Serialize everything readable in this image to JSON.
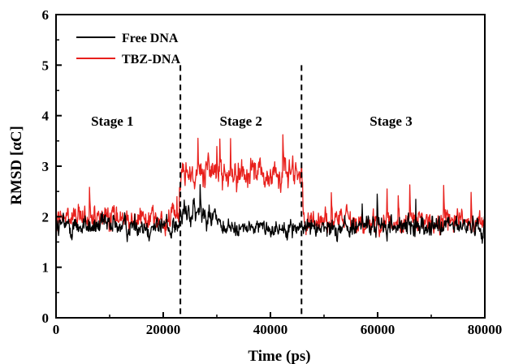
{
  "chart_data": {
    "type": "line",
    "title": "",
    "xlabel": "Time (ps)",
    "ylabel": "RMSD [αC]",
    "xlim": [
      0,
      80000
    ],
    "ylim": [
      0,
      6
    ],
    "x_ticks": [
      0,
      20000,
      40000,
      60000,
      80000
    ],
    "y_ticks": [
      0,
      1,
      2,
      3,
      4,
      5,
      6
    ],
    "x_tick_labels": [
      "0",
      "20000",
      "40000",
      "60000",
      "80000"
    ],
    "y_tick_labels": [
      "0",
      "1",
      "2",
      "3",
      "4",
      "5",
      "6"
    ],
    "grid": false,
    "legend_position": "top-left",
    "series": [
      {
        "name": "Free DNA",
        "color": "#000000",
        "sample_interval_ps": 80,
        "segments": [
          {
            "x_start": 0,
            "x_end": 23000,
            "mean": 1.82,
            "spread": 0.34
          },
          {
            "x_start": 23000,
            "x_end": 30000,
            "mean": 2.05,
            "spread": 0.38
          },
          {
            "x_start": 30000,
            "x_end": 46000,
            "mean": 1.78,
            "spread": 0.24
          },
          {
            "x_start": 46000,
            "x_end": 80000,
            "mean": 1.8,
            "spread": 0.3
          }
        ],
        "min": 1.05,
        "max": 3.05
      },
      {
        "name": "TBZ-DNA",
        "color": "#e8201c",
        "sample_interval_ps": 80,
        "segments": [
          {
            "x_start": 0,
            "x_end": 23000,
            "mean": 1.95,
            "spread": 0.36
          },
          {
            "x_start": 23000,
            "x_end": 46000,
            "mean": 2.85,
            "spread": 0.42
          },
          {
            "x_start": 46000,
            "x_end": 80000,
            "mean": 1.9,
            "spread": 0.34
          }
        ],
        "min": 1.2,
        "max": 3.98
      }
    ],
    "vlines": [
      {
        "x": 23200,
        "style": "dashed"
      },
      {
        "x": 45800,
        "style": "dashed"
      }
    ],
    "annotations": [
      {
        "text": "Stage 1",
        "x": 10500,
        "y": 3.9
      },
      {
        "text": "Stage 2",
        "x": 34500,
        "y": 3.9
      },
      {
        "text": "Stage 3",
        "x": 62500,
        "y": 3.9
      }
    ]
  }
}
